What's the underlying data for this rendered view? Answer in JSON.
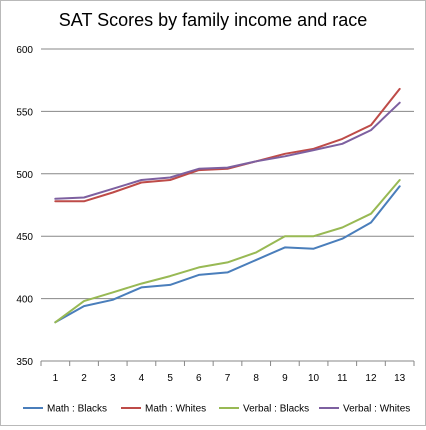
{
  "chart_data": {
    "type": "line",
    "title": "SAT Scores by family income and race",
    "xlabel": "",
    "ylabel": "",
    "categories": [
      "1",
      "2",
      "3",
      "4",
      "5",
      "6",
      "7",
      "8",
      "9",
      "10",
      "11",
      "12",
      "13"
    ],
    "ylim": [
      350,
      600
    ],
    "yticks": [
      "350",
      "400",
      "450",
      "500",
      "550",
      "600"
    ],
    "grid": "horizontal",
    "legend_position": "bottom",
    "series": [
      {
        "name": "Math : Blacks",
        "color": "#4a7ebb",
        "values": [
          381,
          394,
          399,
          409,
          411,
          419,
          421,
          431,
          441,
          440,
          448,
          461,
          490
        ]
      },
      {
        "name": "Math : Whites",
        "color": "#be4b48",
        "values": [
          478,
          478,
          485,
          493,
          495,
          503,
          504,
          510,
          516,
          520,
          528,
          539,
          568
        ]
      },
      {
        "name": "Verbal : Blacks",
        "color": "#98b954",
        "values": [
          381,
          398,
          405,
          412,
          418,
          425,
          429,
          437,
          450,
          450,
          457,
          468,
          495
        ]
      },
      {
        "name": "Verbal : Whites",
        "color": "#7d60a0",
        "values": [
          480,
          481,
          488,
          495,
          497,
          504,
          505,
          510,
          514,
          519,
          524,
          535,
          557
        ]
      }
    ]
  }
}
